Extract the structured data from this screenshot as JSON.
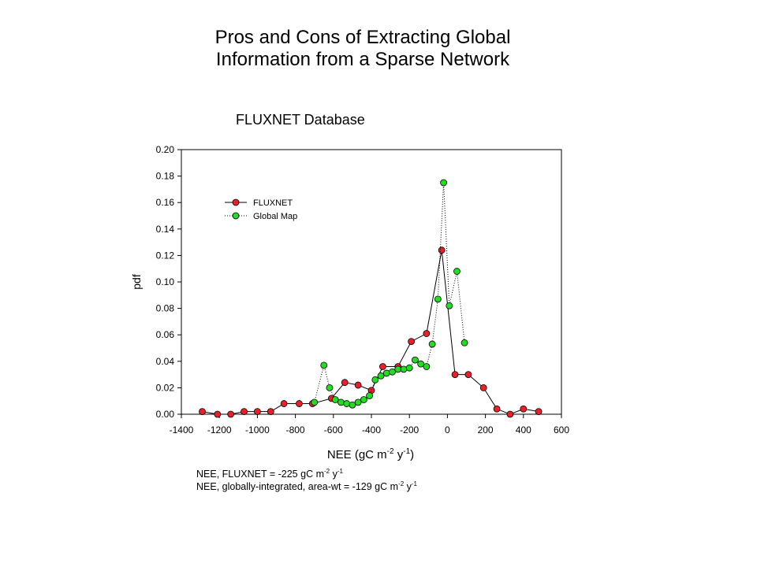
{
  "slide": {
    "title_line1": "Pros and Cons of Extracting Global",
    "title_line2": "Information from a Sparse Network"
  },
  "notes": {
    "line1_prefix": "NEE, FLUXNET = -225 gC m",
    "line1_exp1": "-2",
    "line1_mid": " y",
    "line1_exp2": "-1",
    "line2_prefix": "NEE, globally-integrated, area-wt = -129 gC m",
    "line2_exp1": "-2",
    "line2_mid": " y",
    "line2_exp2": "-1"
  },
  "chart_data": {
    "type": "line",
    "title": "FLUXNET Database",
    "xlabel": "NEE (gC m",
    "xlabel_exp1": "-2",
    "xlabel_mid": " y",
    "xlabel_exp2": "-1",
    "xlabel_close": ")",
    "ylabel": "pdf",
    "xlim": [
      -1400,
      600
    ],
    "ylim": [
      0,
      0.2
    ],
    "xticks": [
      "-1400",
      "-1200",
      "-1000",
      "-800",
      "-600",
      "-400",
      "-200",
      "0",
      "200",
      "400",
      "600"
    ],
    "yticks": [
      "0.00",
      "0.02",
      "0.04",
      "0.06",
      "0.08",
      "0.10",
      "0.12",
      "0.14",
      "0.16",
      "0.18",
      "0.20"
    ],
    "grid": false,
    "legend_position": "top-left",
    "series": [
      {
        "name": "FLUXNET",
        "color": "#e8202a",
        "line_style": "solid",
        "x": [
          -1290,
          -1210,
          -1140,
          -1070,
          -1000,
          -930,
          -860,
          -780,
          -710,
          -610,
          -540,
          -470,
          -400,
          -340,
          -260,
          -190,
          -110,
          -30,
          40,
          110,
          190,
          260,
          330,
          400,
          480
        ],
        "y": [
          0.002,
          0.0,
          0.0,
          0.002,
          0.002,
          0.002,
          0.008,
          0.008,
          0.008,
          0.012,
          0.024,
          0.022,
          0.018,
          0.036,
          0.036,
          0.055,
          0.061,
          0.124,
          0.03,
          0.03,
          0.02,
          0.004,
          0.0,
          0.004,
          0.002
        ]
      },
      {
        "name": "Global Map",
        "color": "#22dd22",
        "line_style": "dotted",
        "x": [
          -700,
          -650,
          -620,
          -590,
          -560,
          -530,
          -500,
          -470,
          -440,
          -410,
          -380,
          -350,
          -320,
          -290,
          -260,
          -230,
          -200,
          -170,
          -140,
          -110,
          -80,
          -50,
          -20,
          10,
          50,
          90
        ],
        "y": [
          0.009,
          0.037,
          0.02,
          0.011,
          0.009,
          0.008,
          0.007,
          0.009,
          0.011,
          0.014,
          0.026,
          0.029,
          0.031,
          0.032,
          0.034,
          0.034,
          0.035,
          0.041,
          0.038,
          0.036,
          0.053,
          0.087,
          0.175,
          0.082,
          0.108,
          0.054
        ]
      }
    ]
  }
}
